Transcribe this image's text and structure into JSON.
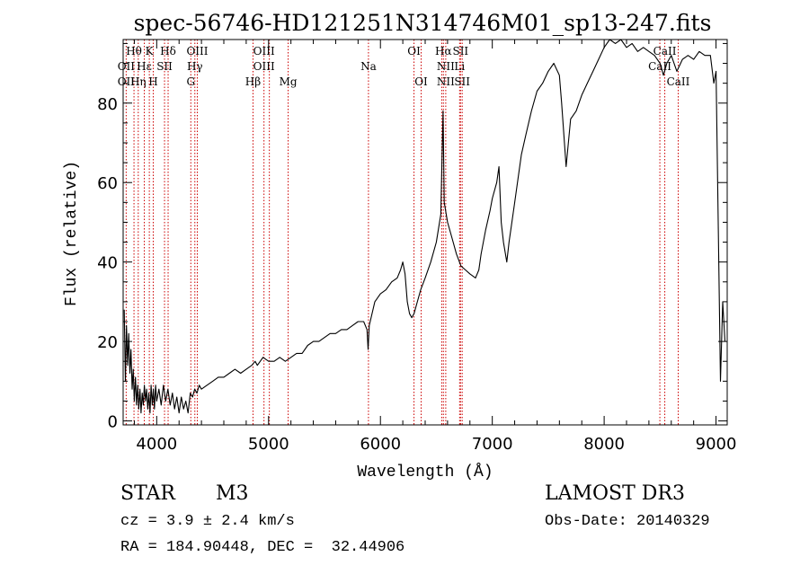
{
  "chart_data": {
    "type": "line",
    "title": "spec-56746-HD121251N314746M01_sp13-247.fits",
    "xlabel": "Wavelength (Å)",
    "ylabel": "Flux (relative)",
    "xlim": [
      3700,
      9100
    ],
    "ylim": [
      -1,
      96
    ],
    "xticks": [
      4000,
      5000,
      6000,
      7000,
      8000,
      9000
    ],
    "yticks": [
      0,
      20,
      40,
      60,
      80
    ],
    "line_color": "#000000",
    "marker_color": "#cc0000",
    "series": [
      {
        "name": "flux",
        "points": [
          [
            3710,
            28
          ],
          [
            3720,
            10
          ],
          [
            3730,
            24
          ],
          [
            3740,
            14
          ],
          [
            3750,
            22
          ],
          [
            3760,
            12
          ],
          [
            3770,
            18
          ],
          [
            3780,
            8
          ],
          [
            3790,
            13
          ],
          [
            3800,
            5
          ],
          [
            3810,
            11
          ],
          [
            3820,
            4
          ],
          [
            3830,
            9
          ],
          [
            3840,
            3
          ],
          [
            3850,
            8
          ],
          [
            3860,
            2
          ],
          [
            3870,
            7
          ],
          [
            3880,
            4
          ],
          [
            3890,
            9
          ],
          [
            3900,
            5
          ],
          [
            3910,
            8
          ],
          [
            3920,
            3
          ],
          [
            3930,
            7
          ],
          [
            3940,
            2
          ],
          [
            3950,
            9
          ],
          [
            3960,
            4
          ],
          [
            3970,
            8
          ],
          [
            3980,
            3
          ],
          [
            3990,
            9
          ],
          [
            4000,
            5
          ],
          [
            4020,
            8
          ],
          [
            4040,
            4
          ],
          [
            4060,
            9
          ],
          [
            4080,
            5
          ],
          [
            4100,
            8
          ],
          [
            4120,
            4
          ],
          [
            4140,
            7
          ],
          [
            4160,
            3
          ],
          [
            4180,
            6
          ],
          [
            4200,
            2
          ],
          [
            4220,
            6
          ],
          [
            4240,
            3
          ],
          [
            4260,
            5
          ],
          [
            4280,
            2
          ],
          [
            4300,
            7
          ],
          [
            4320,
            6
          ],
          [
            4340,
            8
          ],
          [
            4360,
            7
          ],
          [
            4380,
            9
          ],
          [
            4400,
            8
          ],
          [
            4450,
            9
          ],
          [
            4500,
            10
          ],
          [
            4550,
            11
          ],
          [
            4600,
            11
          ],
          [
            4650,
            12
          ],
          [
            4700,
            13
          ],
          [
            4750,
            12
          ],
          [
            4800,
            13
          ],
          [
            4850,
            14
          ],
          [
            4880,
            15
          ],
          [
            4900,
            14
          ],
          [
            4950,
            16
          ],
          [
            5000,
            15
          ],
          [
            5050,
            15
          ],
          [
            5100,
            16
          ],
          [
            5150,
            15
          ],
          [
            5200,
            16
          ],
          [
            5250,
            17
          ],
          [
            5300,
            17
          ],
          [
            5350,
            19
          ],
          [
            5400,
            20
          ],
          [
            5450,
            20
          ],
          [
            5500,
            21
          ],
          [
            5550,
            22
          ],
          [
            5600,
            22
          ],
          [
            5650,
            23
          ],
          [
            5700,
            23
          ],
          [
            5750,
            24
          ],
          [
            5800,
            25
          ],
          [
            5850,
            25
          ],
          [
            5880,
            23
          ],
          [
            5890,
            18
          ],
          [
            5900,
            24
          ],
          [
            5950,
            30
          ],
          [
            6000,
            32
          ],
          [
            6050,
            33
          ],
          [
            6100,
            35
          ],
          [
            6150,
            36
          ],
          [
            6180,
            38
          ],
          [
            6200,
            40
          ],
          [
            6220,
            37
          ],
          [
            6240,
            30
          ],
          [
            6260,
            27
          ],
          [
            6280,
            26
          ],
          [
            6300,
            27
          ],
          [
            6330,
            30
          ],
          [
            6360,
            33
          ],
          [
            6400,
            36
          ],
          [
            6450,
            40
          ],
          [
            6500,
            45
          ],
          [
            6540,
            52
          ],
          [
            6560,
            78
          ],
          [
            6570,
            55
          ],
          [
            6600,
            50
          ],
          [
            6640,
            46
          ],
          [
            6680,
            42
          ],
          [
            6720,
            39
          ],
          [
            6760,
            38
          ],
          [
            6800,
            37
          ],
          [
            6850,
            36
          ],
          [
            6880,
            38
          ],
          [
            6900,
            42
          ],
          [
            6940,
            48
          ],
          [
            6980,
            53
          ],
          [
            7000,
            56
          ],
          [
            7040,
            60
          ],
          [
            7060,
            64
          ],
          [
            7080,
            50
          ],
          [
            7100,
            45
          ],
          [
            7130,
            40
          ],
          [
            7150,
            45
          ],
          [
            7200,
            55
          ],
          [
            7260,
            67
          ],
          [
            7300,
            72
          ],
          [
            7350,
            78
          ],
          [
            7400,
            83
          ],
          [
            7450,
            85
          ],
          [
            7500,
            88
          ],
          [
            7550,
            90
          ],
          [
            7600,
            87
          ],
          [
            7620,
            80
          ],
          [
            7640,
            72
          ],
          [
            7660,
            64
          ],
          [
            7680,
            70
          ],
          [
            7700,
            76
          ],
          [
            7750,
            78
          ],
          [
            7800,
            82
          ],
          [
            7850,
            85
          ],
          [
            7900,
            88
          ],
          [
            7950,
            91
          ],
          [
            8000,
            94
          ],
          [
            8050,
            96
          ],
          [
            8100,
            95
          ],
          [
            8150,
            96
          ],
          [
            8200,
            94
          ],
          [
            8250,
            95
          ],
          [
            8300,
            93
          ],
          [
            8350,
            94
          ],
          [
            8400,
            93
          ],
          [
            8450,
            92
          ],
          [
            8500,
            90
          ],
          [
            8530,
            87
          ],
          [
            8560,
            90
          ],
          [
            8600,
            92
          ],
          [
            8650,
            88
          ],
          [
            8700,
            91
          ],
          [
            8750,
            92
          ],
          [
            8800,
            91
          ],
          [
            8850,
            93
          ],
          [
            8900,
            92
          ],
          [
            8950,
            92
          ],
          [
            8980,
            85
          ],
          [
            9000,
            88
          ],
          [
            9020,
            50
          ],
          [
            9040,
            10
          ],
          [
            9060,
            30
          ],
          [
            9080,
            20
          ]
        ]
      }
    ],
    "annotations": [
      {
        "label": "Hθ",
        "x": 3797,
        "row": 0
      },
      {
        "label": "OII",
        "x": 3727,
        "row": 1
      },
      {
        "label": "OII",
        "x": 3727,
        "row": 2
      },
      {
        "label": "K",
        "x": 3934,
        "row": 0
      },
      {
        "label": "Hε",
        "x": 3889,
        "row": 1
      },
      {
        "label": "Hη",
        "x": 3835,
        "row": 2
      },
      {
        "label": "Hδ",
        "x": 4102,
        "row": 0
      },
      {
        "label": "SII",
        "x": 4070,
        "row": 1
      },
      {
        "label": "H",
        "x": 3969,
        "row": 2
      },
      {
        "label": "OIII",
        "x": 4363,
        "row": 0
      },
      {
        "label": "Hγ",
        "x": 4341,
        "row": 1
      },
      {
        "label": "G",
        "x": 4305,
        "row": 2
      },
      {
        "label": "OIII",
        "x": 4959,
        "row": 0
      },
      {
        "label": "OIII",
        "x": 4959,
        "row": 1
      },
      {
        "label": "Hβ",
        "x": 4861,
        "row": 2
      },
      {
        "label": "Mg",
        "x": 5175,
        "row": 2
      },
      {
        "label": "Na",
        "x": 5893,
        "row": 1
      },
      {
        "label": "OI",
        "x": 6300,
        "row": 0
      },
      {
        "label": "OI",
        "x": 6364,
        "row": 2
      },
      {
        "label": "Hα",
        "x": 6563,
        "row": 0
      },
      {
        "label": "SII",
        "x": 6716,
        "row": 0
      },
      {
        "label": "NII",
        "x": 6584,
        "row": 1
      },
      {
        "label": "Li",
        "x": 6708,
        "row": 1
      },
      {
        "label": "NII",
        "x": 6584,
        "row": 2
      },
      {
        "label": "SII",
        "x": 6731,
        "row": 2
      },
      {
        "label": "CaII",
        "x": 8542,
        "row": 0
      },
      {
        "label": "CaII",
        "x": 8498,
        "row": 1
      },
      {
        "label": "CaII",
        "x": 8662,
        "row": 2
      }
    ],
    "marker_lines": [
      3727,
      3797,
      3835,
      3889,
      3934,
      3969,
      4070,
      4102,
      4305,
      4341,
      4363,
      4861,
      4959,
      5007,
      5175,
      5893,
      6300,
      6364,
      6548,
      6563,
      6584,
      6708,
      6716,
      6731,
      8498,
      8542,
      8662
    ]
  },
  "info": {
    "object_type": "STAR",
    "subclass": "M3",
    "survey": "LAMOST DR3",
    "cz": "cz = 3.9 ± 2.4 km/s",
    "obs_date": "Obs-Date: 20140329",
    "coords": "RA = 184.90448, DEC =  32.44906"
  }
}
